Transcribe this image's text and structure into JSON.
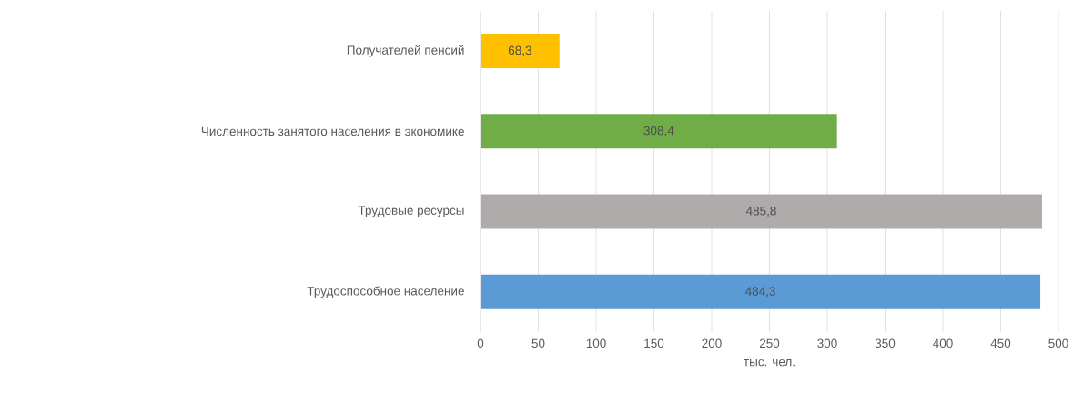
{
  "chart_data": {
    "type": "bar",
    "orientation": "horizontal",
    "xlabel": "тыс. чел.",
    "categories": [
      "Получателей пенсий",
      "Численность занятого населения в экономике",
      "Трудовые ресурсы",
      "Трудоспособное население"
    ],
    "values": [
      68.3,
      308.4,
      485.8,
      484.3
    ],
    "value_labels": [
      "68,3",
      "308,4",
      "485,8",
      "484,3"
    ],
    "colors": [
      "#ffc000",
      "#70ad47",
      "#afabab",
      "#5b9bd5"
    ],
    "xlim": [
      0,
      500
    ],
    "xticks": [
      0,
      50,
      100,
      150,
      200,
      250,
      300,
      350,
      400,
      450,
      500
    ],
    "grid": "x"
  }
}
